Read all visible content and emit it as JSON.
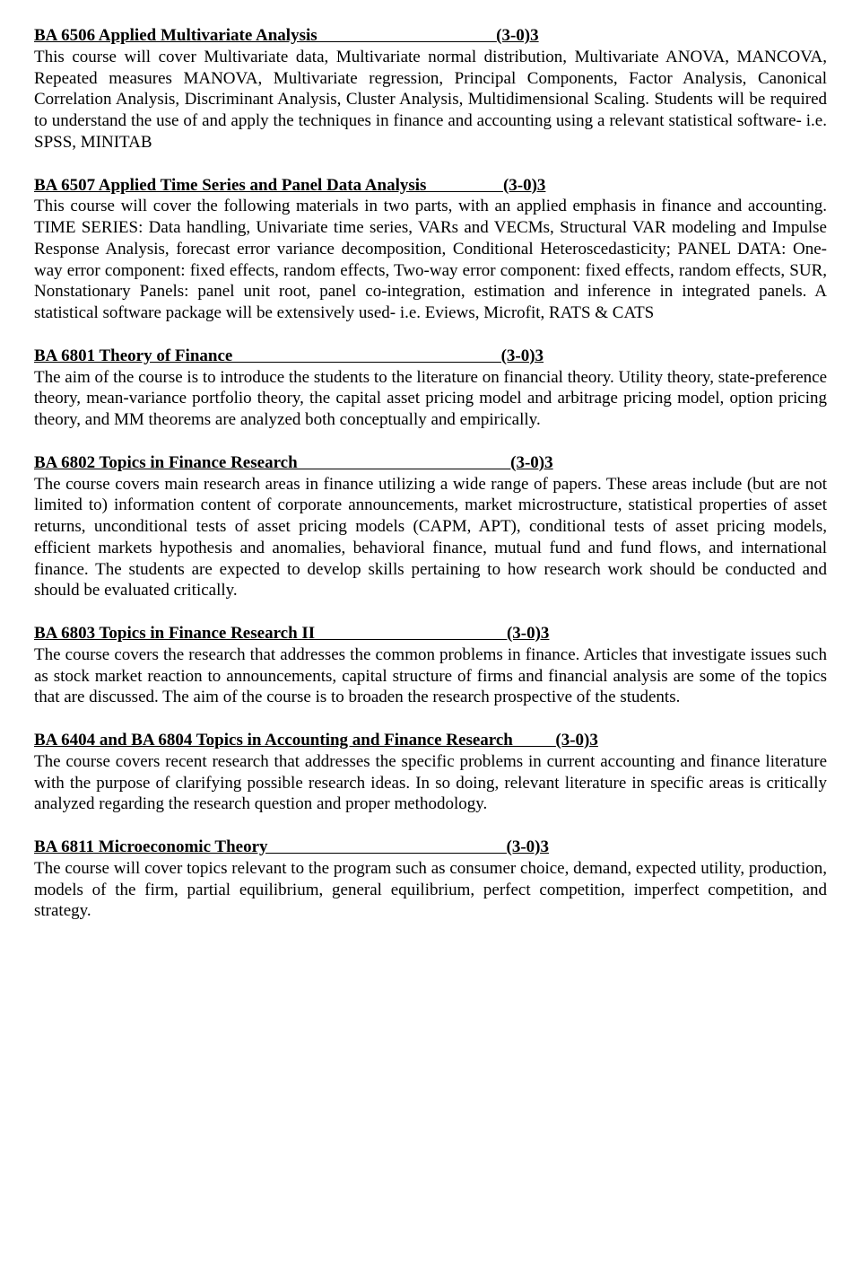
{
  "courses": [
    {
      "title": "BA 6506 Applied Multivariate Analysis                                          ",
      "credits": "(3-0)3",
      "desc": "This course will cover Multivariate data, Multivariate normal distribution, Multivariate ANOVA, MANCOVA, Repeated measures MANOVA, Multivariate regression, Principal Components, Factor Analysis, Canonical Correlation Analysis, Discriminant Analysis, Cluster Analysis, Multidimensional Scaling. Students will be required to understand the use of and apply the techniques in finance and accounting using a relevant statistical software- i.e. SPSS, MINITAB"
    },
    {
      "title": "BA 6507 Applied Time Series and Panel Data Analysis                  ",
      "credits": "(3-0)3",
      "desc": "This course will cover the following materials in two parts, with an applied emphasis in finance and accounting. TIME SERIES: Data handling, Univariate time series, VARs and VECMs, Structural VAR modeling and Impulse Response Analysis, forecast error variance decomposition, Conditional Heteroscedasticity; PANEL DATA: One-way error component: fixed effects, random effects, Two-way error component: fixed effects, random effects, SUR, Nonstationary Panels: panel unit root, panel co-integration, estimation and inference in integrated panels. A statistical software package will be extensively used- i.e. Eviews, Microfit, RATS & CATS"
    },
    {
      "title": "BA 6801 Theory of Finance                                                               ",
      "credits": "(3-0)3",
      "desc": "The aim of the course is to introduce the students to the literature on financial theory. Utility theory, state-preference theory, mean-variance portfolio theory, the capital asset pricing model and arbitrage pricing model, option pricing theory, and MM theorems are analyzed both conceptually and empirically."
    },
    {
      "title": "BA 6802 Topics in Finance Research                                                  ",
      "credits": "(3-0)3",
      "desc": "The course covers main research areas in finance utilizing a wide range of papers. These areas include (but are not limited to) information content of corporate announcements, market microstructure, statistical properties of asset returns, unconditional tests of asset pricing models (CAPM, APT), conditional tests of asset pricing models, efficient markets hypothesis and anomalies, behavioral finance, mutual fund and fund flows, and international finance. The students are expected to develop skills pertaining to how research work should be conducted and should be evaluated critically."
    },
    {
      "title": "BA 6803 Topics in Finance Research II                                             ",
      "credits": "(3-0)3",
      "desc": "The course covers the research that addresses the common problems in finance. Articles that investigate issues such as stock market reaction to announcements, capital structure of firms and financial analysis are some of the topics that are discussed. The aim of the course is to broaden the research prospective of the students."
    },
    {
      "title": "BA 6404 and BA 6804 Topics in Accounting and Finance Research          ",
      "credits": "(3-0)3",
      "desc": "The course covers recent research that addresses the specific problems in current accounting and finance literature with the purpose of clarifying possible research ideas. In so doing, relevant literature in specific areas is critically analyzed regarding the research question and proper methodology."
    },
    {
      "title": "BA 6811 Microeconomic Theory                                                        ",
      "credits": "(3-0)3",
      "desc": "The course will cover topics relevant to the program such as consumer choice, demand, expected utility, production, models of the firm, partial equilibrium, general equilibrium, perfect competition, imperfect competition, and strategy."
    }
  ]
}
